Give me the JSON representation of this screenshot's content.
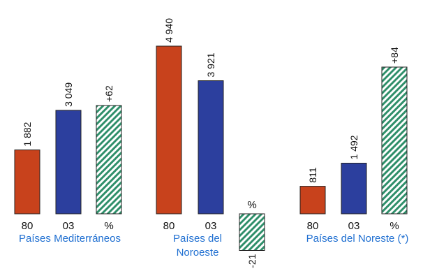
{
  "chart_data": {
    "type": "bar",
    "categories": [
      "80",
      "03",
      "%"
    ],
    "colors": {
      "80": "#c8421c",
      "03": "#2c3f9e",
      "%": "#2f8f6a",
      "hatch_bg": "#ffffff"
    },
    "groups": [
      {
        "name_lines": [
          "Países Mediterráneos"
        ],
        "bars": [
          {
            "category": "80",
            "value": 1882,
            "label": "1 882"
          },
          {
            "category": "03",
            "value": 3049,
            "label": "3 049"
          },
          {
            "category": "%",
            "value": 62,
            "label": "+62"
          }
        ]
      },
      {
        "name_lines": [
          "Países del",
          "Noroeste"
        ],
        "bars": [
          {
            "category": "80",
            "value": 4940,
            "label": "4 940"
          },
          {
            "category": "03",
            "value": 3921,
            "label": "3 921"
          },
          {
            "category": "%",
            "value": -21,
            "label": "-21"
          }
        ]
      },
      {
        "name_lines": [
          "Países del Noreste (*)"
        ],
        "bars": [
          {
            "category": "80",
            "value": 811,
            "label": "811"
          },
          {
            "category": "03",
            "value": 1492,
            "label": "1 492"
          },
          {
            "category": "%",
            "value": 84,
            "label": "+84"
          }
        ]
      }
    ]
  }
}
